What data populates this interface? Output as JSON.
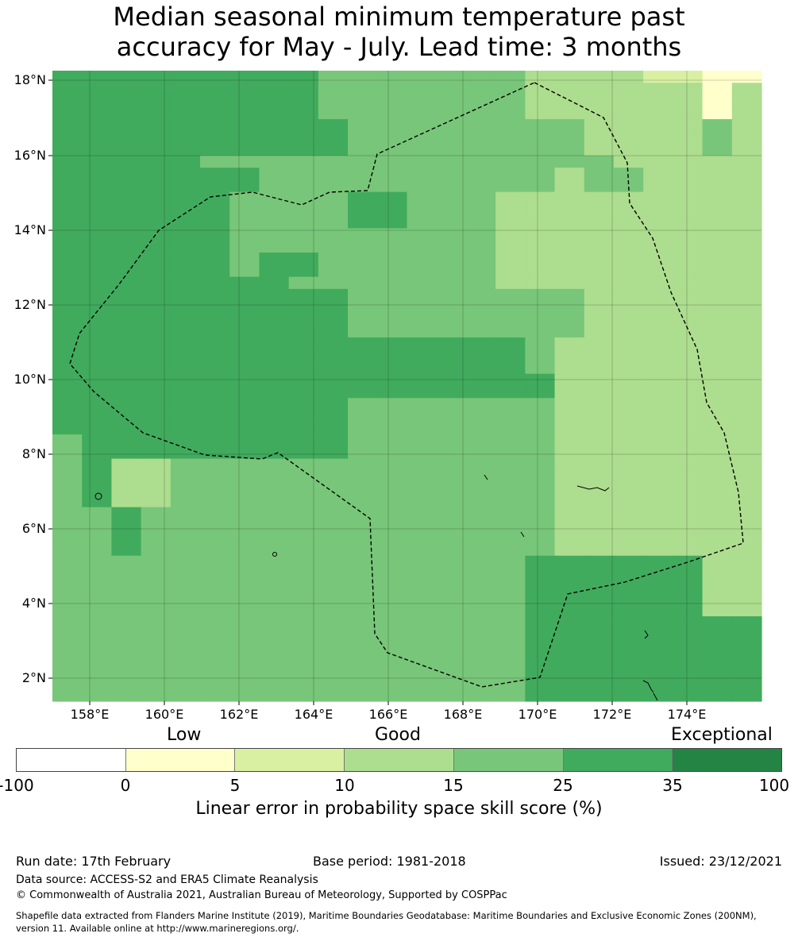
{
  "title_line1": "Median seasonal minimum temperature past",
  "title_line2": "accuracy for May - July. Lead time: 3 months",
  "map": {
    "lat_labels": [
      "18°N",
      "16°N",
      "14°N",
      "12°N",
      "10°N",
      "8°N",
      "6°N",
      "4°N",
      "2°N"
    ],
    "lon_labels": [
      "158°E",
      "160°E",
      "162°E",
      "164°E",
      "166°E",
      "168°E",
      "170°E",
      "172°E",
      "174°E"
    ],
    "grid": [
      "555555555444444433332211",
      "555555555444444433333313",
      "555555555444444433333313",
      "555555555444444433333313",
      "555555555544444444333343",
      "555555555544444444333343",
      "555555555544444444333343",
      "555554444444444444433333",
      "555555544444444443443333",
      "555555544444444443443333",
      "555555444455444333333333",
      "555555444455444333333333",
      "555555444455444333333333",
      "555555444444444333333333",
      "555555444444444333333333",
      "555555455444444333333333",
      "555555455444444333333333",
      "555555554444444333333333",
      "555555555544444444333333",
      "555555555544444444333333",
      "555555555544444444333333",
      "555555555544444444333333",
      "555555555555555543333333",
      "555555555555555543333333",
      "555555555555555543333333",
      "555555555555555553333333",
      "555555555555555553333333",
      "555555555544444443333333",
      "555555555544444443333333",
      "555555555544444443333333",
      "455555555544444443333333",
      "455555555544444443333333",
      "453344444444444443333333",
      "453344444444444443333333",
      "453344444444444443333333",
      "453344444444444443333333",
      "445444444444444443333333",
      "445444444444444443333333",
      "445444444444444443333333",
      "445444444444444443333333",
      "444444444444444455555533",
      "444444444444444455555533",
      "444444444444444455555533",
      "444444444444444455555533",
      "444444444444444455555533",
      "444444444444444455555555",
      "444444444444444455555555",
      "444444444444444455555555",
      "444444444444444455555555",
      "444444444444444455555555",
      "444444444444444455555555",
      "444444444444444455555555"
    ]
  },
  "colorbar": {
    "categories": [
      "Low",
      "Good",
      "Exceptional"
    ],
    "colors": [
      "#ffffff",
      "#ffffcc",
      "#d9f0a3",
      "#addd8e",
      "#78c679",
      "#41ab5d",
      "#238443"
    ],
    "ticks": [
      "-100",
      "0",
      "5",
      "10",
      "15",
      "25",
      "35",
      "100"
    ],
    "title": "Linear error in probability space skill score (%)"
  },
  "footer": {
    "run_date": "Run date: 17th February",
    "base_period": "Base period: 1981-2018",
    "issued": "Issued: 23/12/2021",
    "data_source": "Data source: ACCESS-S2 and ERA5 Climate Reanalysis",
    "copyright": "© Commonwealth of Australia 2021, Australian Bureau of Meteorology, Supported by COSPPac",
    "shapefile_line1": "Shapefile data extracted from Flanders Marine Institute (2019), Maritime Boundaries Geodatabase: Maritime Boundaries and Exclusive Economic Zones (200NM),",
    "shapefile_line2": "version 11. Available online at http://www.marineregions.org/."
  }
}
